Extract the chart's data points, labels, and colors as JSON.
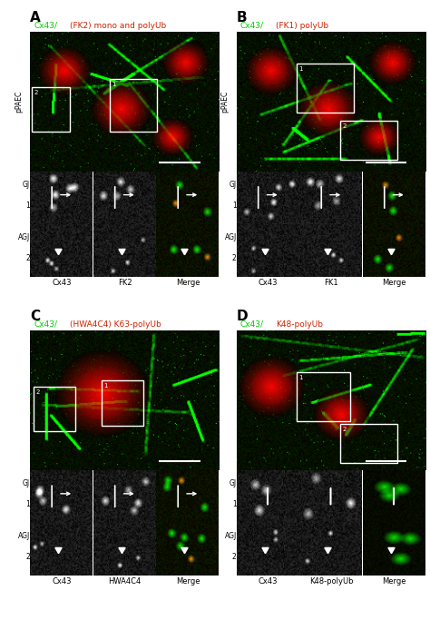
{
  "fig_width": 4.74,
  "fig_height": 6.83,
  "dpi": 100,
  "background_color": "#ffffff",
  "panels": [
    {
      "label": "A",
      "title_green": "Cx43/",
      "title_red": "(FK2) mono and polyUb",
      "left_label": "pPAEC",
      "row1_label": "GJ",
      "row2_label": "AGJ",
      "col_labels": [
        "Cx43",
        "FK2",
        "Merge"
      ],
      "panel_col": 0,
      "panel_row": 0
    },
    {
      "label": "B",
      "title_green": "Cx43/",
      "title_red": "(FK1) polyUb",
      "left_label": "pPAEC",
      "row1_label": "GJ",
      "row2_label": "AGJ",
      "col_labels": [
        "Cx43",
        "FK1",
        "Merge"
      ],
      "panel_col": 1,
      "panel_row": 0
    },
    {
      "label": "C",
      "title_green": "Cx43/",
      "title_red": "(HWA4C4) K63-polyUb",
      "left_label": "",
      "row1_label": "GJ",
      "row2_label": "AGJ",
      "col_labels": [
        "Cx43",
        "HWA4C4",
        "Merge"
      ],
      "panel_col": 0,
      "panel_row": 1
    },
    {
      "label": "D",
      "title_green": "Cx43/",
      "title_red": "K48-polyUb",
      "left_label": "",
      "row1_label": "GJ",
      "row2_label": "AGJ",
      "col_labels": [
        "Cx43",
        "K48-polyUb",
        "Merge"
      ],
      "panel_col": 1,
      "panel_row": 1
    }
  ],
  "green_color": "#00cc00",
  "red_color": "#cc2200",
  "white": "#ffffff",
  "black": "#000000",
  "label_fontsize": 11,
  "title_fontsize": 6.5,
  "small_fontsize": 5.5,
  "col_label_fontsize": 6
}
